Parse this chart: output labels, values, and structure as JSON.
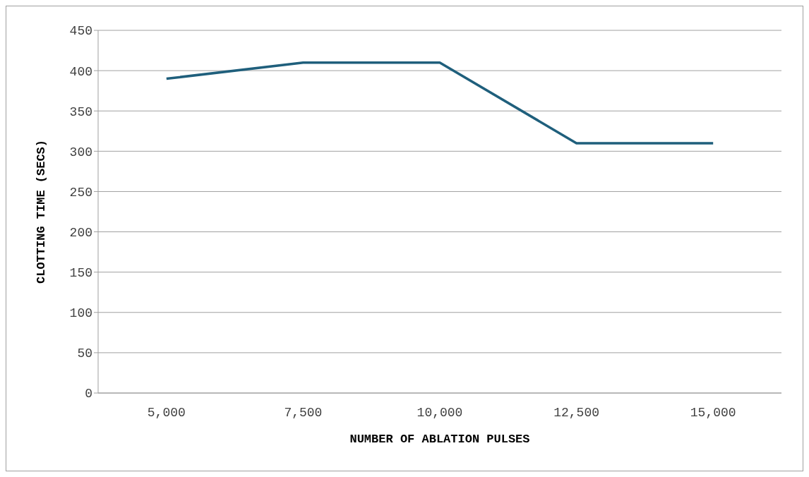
{
  "chart_data": {
    "type": "line",
    "xlabel": "NUMBER OF ABLATION PULSES",
    "ylabel": "CLOTTING TIME (SECS)",
    "categories": [
      "5,000",
      "7,500",
      "10,000",
      "12,500",
      "15,000"
    ],
    "series": [
      {
        "color": "#1f5f7c",
        "values": [
          390,
          410,
          410,
          310,
          310
        ]
      }
    ],
    "ylim": [
      0,
      450
    ],
    "yticks": [
      0,
      50,
      100,
      150,
      200,
      250,
      300,
      350,
      400,
      450
    ],
    "grid": "y",
    "legend": false
  }
}
